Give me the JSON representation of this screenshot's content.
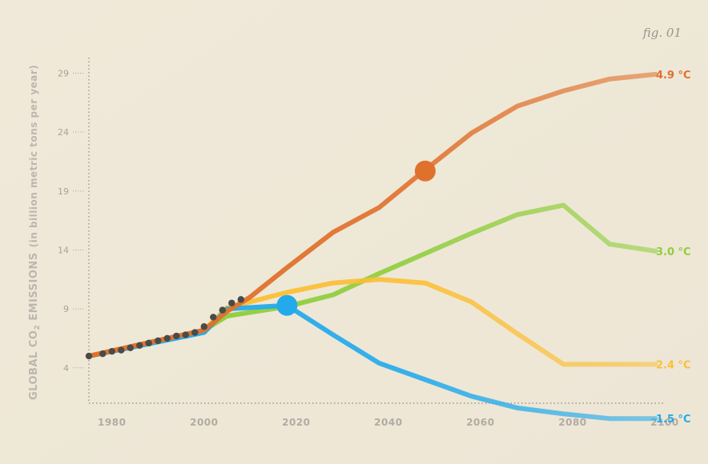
{
  "figure_label": "fig. 01",
  "chart_data": {
    "type": "line",
    "ylabel": {
      "main": "GLOBAL CO",
      "subscript": "2",
      "main_suffix": " EMISSIONS",
      "units": "(in billion metric tons per year)"
    },
    "xlim": [
      1975,
      2100
    ],
    "ylim": [
      1,
      31
    ],
    "x_ticks": [
      1980,
      2000,
      2020,
      2040,
      2060,
      2080,
      2100
    ],
    "y_ticks": [
      4,
      9,
      14,
      19,
      24,
      29
    ],
    "grid": false,
    "historical": {
      "color": "#4a4a48",
      "x": [
        1975,
        1978,
        1980,
        1982,
        1984,
        1986,
        1988,
        1990,
        1992,
        1994,
        1996,
        1998,
        2000,
        2002,
        2004,
        2006,
        2008
      ],
      "y": [
        5.0,
        5.2,
        5.4,
        5.5,
        5.7,
        5.9,
        6.1,
        6.3,
        6.5,
        6.7,
        6.8,
        7.0,
        7.5,
        8.3,
        8.9,
        9.5,
        9.8
      ]
    },
    "series": [
      {
        "name": "4.9 °C",
        "color": "#e0712c",
        "x": [
          1975,
          2000,
          2005,
          2010,
          2018,
          2028,
          2038,
          2048,
          2058,
          2068,
          2078,
          2088,
          2098
        ],
        "y": [
          5.0,
          7.2,
          8.8,
          10.0,
          12.5,
          15.5,
          17.6,
          20.8,
          23.9,
          26.2,
          27.5,
          28.5,
          28.9
        ],
        "marker": {
          "x": 2048,
          "y": 20.7
        }
      },
      {
        "name": "3.0 °C",
        "color": "#8fce3c",
        "x": [
          1975,
          2000,
          2005,
          2018,
          2028,
          2038,
          2048,
          2058,
          2068,
          2078,
          2088,
          2098
        ],
        "y": [
          5.0,
          7.2,
          8.4,
          9.2,
          10.2,
          12.0,
          13.7,
          15.4,
          17.0,
          17.8,
          14.5,
          13.9
        ]
      },
      {
        "name": "2.4 °C",
        "color": "#fbbf36",
        "x": [
          1975,
          2000,
          2005,
          2018,
          2028,
          2038,
          2048,
          2058,
          2068,
          2078,
          2088,
          2098
        ],
        "y": [
          5.0,
          7.2,
          9.1,
          10.4,
          11.2,
          11.5,
          11.2,
          9.6,
          6.9,
          4.3,
          4.3,
          4.3
        ]
      },
      {
        "name": "1.5 °C",
        "color": "#23aaec",
        "x": [
          1975,
          2000,
          2005,
          2018,
          2028,
          2038,
          2048,
          2058,
          2068,
          2078,
          2088,
          2098
        ],
        "y": [
          5.0,
          7.0,
          9.0,
          9.3,
          6.8,
          4.4,
          3.0,
          1.6,
          0.6,
          0.1,
          -0.3,
          -0.3
        ],
        "marker": {
          "x": 2018,
          "y": 9.3
        }
      }
    ]
  }
}
